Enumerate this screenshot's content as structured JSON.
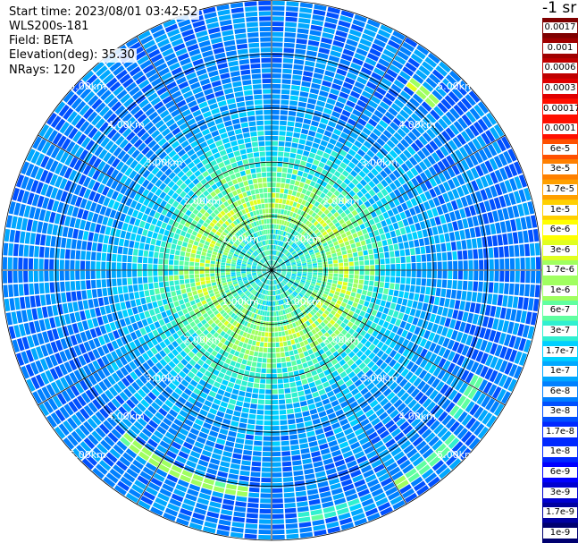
{
  "header": {
    "start_time": "Start time: 2023/08/01 03:42:52",
    "instrument": "WLS200s-181",
    "field": "Field: BETA",
    "elevation": "Elevation(deg): 35.30",
    "nrays": "NRays: 120"
  },
  "colorbar": {
    "unit": "-1 sr",
    "colors": [
      "#7f0000",
      "#a00000",
      "#c00000",
      "#e00000",
      "#ff1000",
      "#ff5000",
      "#ff8000",
      "#ffa000",
      "#ffd000",
      "#ffff00",
      "#e0ff20",
      "#a0ff60",
      "#60ffa0",
      "#30f0d0",
      "#00d0ff",
      "#00a8ff",
      "#0080ff",
      "#0050ff",
      "#0028ff",
      "#0000ff",
      "#0000d0",
      "#0000a0",
      "#000070"
    ],
    "labels": [
      "0.0017",
      "0.001",
      "0.0006",
      "0.0003",
      "0.00017",
      "0.0001",
      "6e-5",
      "3e-5",
      "1.7e-5",
      "1e-5",
      "6e-6",
      "3e-6",
      "1.7e-6",
      "1e-6",
      "6e-7",
      "3e-7",
      "1.7e-7",
      "1e-7",
      "6e-8",
      "3e-8",
      "1.7e-8",
      "1e-8",
      "6e-9",
      "3e-9",
      "1.7e-9",
      "1e-9"
    ]
  },
  "chart_data": {
    "type": "heatmap",
    "projection": "polar-ppi",
    "n_rays": 120,
    "max_range_km": 5.0,
    "range_rings_km": [
      1,
      2,
      3,
      4,
      5
    ],
    "ring_labels": [
      "1.00km",
      "2.00km",
      "3.00km",
      "4.00km",
      "5.00km"
    ],
    "azimuth_gridlines_deg": [
      0,
      30,
      60,
      90,
      120,
      150,
      180,
      210,
      240,
      270,
      300,
      330
    ],
    "ring_label_bearings_deg": [
      45,
      135,
      225,
      315
    ],
    "field": "BETA",
    "value_scale": "log",
    "value_range": [
      1e-09,
      0.0017
    ],
    "background_level_index_by_range_km": [
      [
        0.0,
        13
      ],
      [
        0.6,
        13
      ],
      [
        1.3,
        11
      ],
      [
        2.0,
        13
      ],
      [
        2.8,
        15
      ],
      [
        3.8,
        16
      ],
      [
        5.0,
        16
      ]
    ],
    "enhanced_arcs": [
      {
        "range_km": 4.35,
        "az_from_deg": 36,
        "az_to_deg": 44,
        "level_index": 11
      },
      {
        "range_km": 4.3,
        "az_from_deg": 116,
        "az_to_deg": 130,
        "level_index": 12
      },
      {
        "range_km": 4.6,
        "az_from_deg": 132,
        "az_to_deg": 150,
        "level_index": 12
      },
      {
        "range_km": 4.1,
        "az_from_deg": 185,
        "az_to_deg": 222,
        "level_index": 11
      },
      {
        "range_km": 4.6,
        "az_from_deg": 158,
        "az_to_deg": 175,
        "level_index": 13
      }
    ]
  }
}
